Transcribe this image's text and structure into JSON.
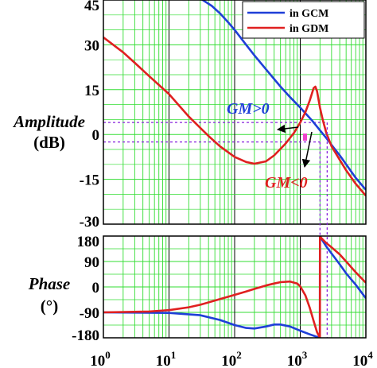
{
  "chart_data": [
    {
      "type": "line",
      "title": "",
      "xlabel": "",
      "ylabel": "Amplitude",
      "yunit": "(dB)",
      "x_scale": "log",
      "xlim": [
        1,
        10000
      ],
      "ylim": [
        -30,
        45
      ],
      "yticks": [
        "45",
        "30",
        "15",
        "0",
        "-15",
        "-30"
      ],
      "ytick_values": [
        45,
        30,
        15,
        0,
        -15,
        -30
      ],
      "grid": true,
      "grid_color": "#33dd33",
      "legend_position": "top-right",
      "series": [
        {
          "name": "in GCM",
          "color": "#1f3fd8",
          "x": [
            30,
            45,
            60,
            80,
            100,
            150,
            200,
            300,
            500,
            700,
            1000,
            1500,
            2000,
            2500,
            3000,
            4000,
            5000,
            7000,
            10000
          ],
          "y": [
            45.5,
            43,
            40.5,
            37.5,
            35,
            30,
            26.5,
            21.8,
            16,
            12.5,
            9,
            4.8,
            1.4,
            -1.2,
            -3.5,
            -7,
            -10,
            -14.5,
            -18.5
          ]
        },
        {
          "name": "in GDM",
          "color": "#e02020",
          "x": [
            1,
            2,
            3,
            5,
            10,
            20,
            40,
            60,
            100,
            150,
            200,
            300,
            400,
            600,
            800,
            1000,
            1200,
            1400,
            1600,
            1700,
            1800,
            2000,
            2200,
            2500,
            3000,
            4000,
            5000,
            7000,
            10000
          ],
          "y": [
            32.5,
            27.5,
            24,
            19.5,
            13.5,
            6,
            -0.5,
            -4,
            -7.5,
            -9.2,
            -9.8,
            -9,
            -7,
            -3,
            0.5,
            4,
            7.5,
            11.5,
            15.5,
            16,
            14.5,
            9,
            5,
            0.5,
            -4,
            -8.5,
            -12,
            -16.5,
            -20.5
          ]
        }
      ],
      "annotations": [
        {
          "text": "GM>0",
          "color": "#1f3fd8"
        },
        {
          "text": "GM<0",
          "color": "#e02020"
        }
      ],
      "reference_lines_db": [
        4,
        -2.5
      ],
      "reference_line_color": "#8822dd"
    },
    {
      "type": "line",
      "title": "",
      "xlabel": "",
      "ylabel": "Phase",
      "yunit": "(°)",
      "x_scale": "log",
      "xlim": [
        1,
        10000
      ],
      "ylim": [
        -180,
        180
      ],
      "yticks": [
        "180",
        "90",
        "0",
        "-90",
        "-180"
      ],
      "ytick_values": [
        180,
        90,
        0,
        -90,
        -180
      ],
      "xticks": [
        {
          "base": "10",
          "exp": "0"
        },
        {
          "base": "10",
          "exp": "1"
        },
        {
          "base": "10",
          "exp": "2"
        },
        {
          "base": "10",
          "exp": "3"
        },
        {
          "base": "10",
          "exp": "4"
        }
      ],
      "xtick_values": [
        1,
        10,
        100,
        1000,
        10000
      ],
      "grid": true,
      "series": [
        {
          "name": "in GCM",
          "color": "#1f3fd8",
          "x": [
            1,
            10,
            30,
            60,
            100,
            150,
            200,
            300,
            400,
            500,
            700,
            1000,
            1400,
            1800,
            1990,
            2000,
            2010,
            2200,
            2500,
            3000,
            4000,
            5000,
            7000,
            10000
          ],
          "y": [
            -90,
            -92,
            -100,
            -117,
            -135,
            -145,
            -147,
            -140,
            -133,
            -133,
            -140,
            -155,
            -168,
            -177,
            -180,
            180,
            178,
            163,
            143,
            118,
            80,
            48,
            8,
            -40
          ]
        },
        {
          "name": "in GDM",
          "color": "#e02020",
          "x": [
            1,
            5,
            10,
            20,
            30,
            50,
            100,
            150,
            200,
            300,
            400,
            500,
            700,
            900,
            1000,
            1200,
            1400,
            1600,
            1800,
            1990,
            2000,
            2010,
            2200,
            2500,
            3000,
            4000,
            5000,
            7000,
            10000
          ],
          "y": [
            -90,
            -87,
            -82,
            -72,
            -63,
            -48,
            -28,
            -16,
            -7,
            5,
            12,
            17,
            19,
            12,
            2,
            -30,
            -75,
            -120,
            -160,
            -180,
            180,
            178,
            168,
            155,
            140,
            115,
            90,
            52,
            15
          ]
        }
      ],
      "reference_line_color": "#8822dd"
    }
  ]
}
